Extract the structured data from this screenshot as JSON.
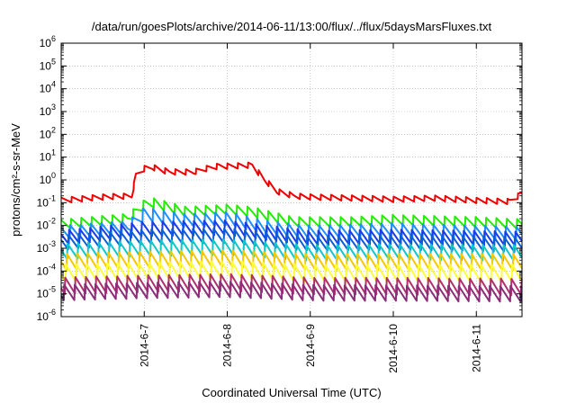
{
  "chart_data": {
    "type": "line",
    "title": "/data/run/goesPlots/archive/2014-06-11/13:00/flux/../flux/5daysMarsFluxes.txt",
    "xlabel": "Coordinated Universal Time (UTC)",
    "ylabel": "protons/cm²-s-sr-MeV",
    "y_scale": "log",
    "ylim": [
      1e-06,
      1000000.0
    ],
    "y_ticks": [
      -6,
      -5,
      -4,
      -3,
      -2,
      -1,
      0,
      1,
      2,
      3,
      4,
      5,
      6
    ],
    "x_unit": "days",
    "xlim": [
      0,
      5.55
    ],
    "x_ticks": [
      {
        "x": 1.0,
        "label": "2014-6-7"
      },
      {
        "x": 2.0,
        "label": "2014-6-8"
      },
      {
        "x": 3.0,
        "label": "2014-6-9"
      },
      {
        "x": 4.0,
        "label": "2014-6-10"
      },
      {
        "x": 5.0,
        "label": "2014-6-11"
      }
    ],
    "grid": true,
    "sawtooth_period_days": 0.125,
    "series": [
      {
        "color": "#ee0000",
        "base_log": [
          [
            0,
            -0.9
          ],
          [
            0.5,
            -0.75
          ],
          [
            0.85,
            -0.7
          ],
          [
            0.9,
            0.2
          ],
          [
            1.0,
            0.5
          ],
          [
            1.1,
            0.55
          ],
          [
            1.3,
            0.35
          ],
          [
            1.6,
            0.35
          ],
          [
            1.75,
            0.5
          ],
          [
            1.9,
            0.6
          ],
          [
            2.0,
            0.6
          ],
          [
            2.3,
            0.65
          ],
          [
            2.45,
            0.0
          ],
          [
            2.6,
            -0.5
          ],
          [
            2.8,
            -0.7
          ],
          [
            3.0,
            -0.75
          ],
          [
            3.5,
            -0.8
          ],
          [
            4.0,
            -0.85
          ],
          [
            4.5,
            -0.8
          ],
          [
            5.0,
            -0.9
          ],
          [
            5.4,
            -0.95
          ],
          [
            5.55,
            -0.6
          ]
        ],
        "amp": 0.25
      },
      {
        "color": "#22ee00",
        "base_log": [
          [
            0,
            -1.95
          ],
          [
            0.8,
            -1.7
          ],
          [
            1.0,
            -1.1
          ],
          [
            1.1,
            -1.0
          ],
          [
            1.5,
            -1.4
          ],
          [
            2.0,
            -1.3
          ],
          [
            2.3,
            -1.4
          ],
          [
            2.8,
            -1.85
          ],
          [
            3.5,
            -1.85
          ],
          [
            4.0,
            -1.75
          ],
          [
            4.5,
            -1.8
          ],
          [
            5.0,
            -1.85
          ],
          [
            5.55,
            -1.95
          ]
        ],
        "amp": 0.45
      },
      {
        "color": "#1e8fff",
        "base_log": [
          [
            0,
            -2.3
          ],
          [
            0.8,
            -2.1
          ],
          [
            1.0,
            -1.5
          ],
          [
            1.5,
            -1.8
          ],
          [
            2.0,
            -1.7
          ],
          [
            2.5,
            -2.1
          ],
          [
            3.0,
            -2.3
          ],
          [
            4.0,
            -2.2
          ],
          [
            5.0,
            -2.3
          ],
          [
            5.55,
            -2.35
          ]
        ],
        "amp": 0.6
      },
      {
        "color": "#1a3ce8",
        "base_log": [
          [
            0,
            -2.55
          ],
          [
            1.0,
            -2.15
          ],
          [
            2.0,
            -2.1
          ],
          [
            3.0,
            -2.55
          ],
          [
            4.0,
            -2.5
          ],
          [
            5.0,
            -2.55
          ],
          [
            5.55,
            -2.6
          ]
        ],
        "amp": 0.65
      },
      {
        "color": "#0a5fd6",
        "base_log": [
          [
            0,
            -2.75
          ],
          [
            1.0,
            -2.5
          ],
          [
            2.0,
            -2.45
          ],
          [
            3.0,
            -2.8
          ],
          [
            4.0,
            -2.75
          ],
          [
            5.0,
            -2.8
          ],
          [
            5.55,
            -2.85
          ]
        ],
        "amp": 0.65
      },
      {
        "color": "#10c8c8",
        "base_log": [
          [
            0,
            -3.15
          ],
          [
            1.0,
            -3.0
          ],
          [
            2.0,
            -2.95
          ],
          [
            3.0,
            -3.2
          ],
          [
            4.0,
            -3.15
          ],
          [
            5.55,
            -3.2
          ]
        ],
        "amp": 0.7
      },
      {
        "color": "#f5c800",
        "base_log": [
          [
            0,
            -3.6
          ],
          [
            1.0,
            -3.5
          ],
          [
            2.0,
            -3.45
          ],
          [
            3.0,
            -3.6
          ],
          [
            5.55,
            -3.6
          ]
        ],
        "amp": 0.75
      },
      {
        "color": "#ffff3a",
        "base_log": [
          [
            0,
            -4.1
          ],
          [
            1.0,
            -4.0
          ],
          [
            2.0,
            -3.95
          ],
          [
            3.0,
            -4.1
          ],
          [
            5.55,
            -4.1
          ]
        ],
        "amp": 0.8
      },
      {
        "color": "#b0306e",
        "base_log": [
          [
            0,
            -4.65
          ],
          [
            1.0,
            -4.55
          ],
          [
            2.0,
            -4.5
          ],
          [
            3.0,
            -4.65
          ],
          [
            5.55,
            -4.7
          ]
        ],
        "amp": 0.75
      },
      {
        "color": "#8a2e7a",
        "base_log": [
          [
            0,
            -4.95
          ],
          [
            1.0,
            -4.85
          ],
          [
            2.0,
            -4.8
          ],
          [
            3.0,
            -4.95
          ],
          [
            5.55,
            -5.0
          ]
        ],
        "amp": 0.7
      }
    ]
  }
}
